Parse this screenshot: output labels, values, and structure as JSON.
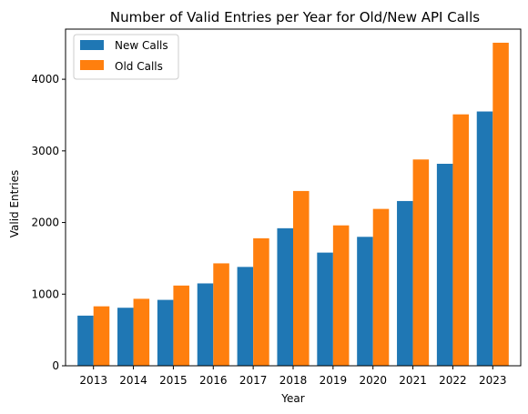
{
  "chart_data": {
    "type": "bar",
    "title": "Number of Valid Entries per Year for Old/New API Calls",
    "xlabel": "Year",
    "ylabel": "Valid Entries",
    "categories": [
      "2013",
      "2014",
      "2015",
      "2016",
      "2017",
      "2018",
      "2019",
      "2020",
      "2021",
      "2022",
      "2023"
    ],
    "series": [
      {
        "name": "New Calls",
        "color": "#1f77b4",
        "values": [
          700,
          810,
          920,
          1150,
          1380,
          1920,
          1580,
          1800,
          2300,
          2820,
          3550
        ]
      },
      {
        "name": "Old Calls",
        "color": "#ff7f0e",
        "values": [
          830,
          935,
          1120,
          1430,
          1780,
          2440,
          1960,
          2190,
          2880,
          3510,
          4510
        ]
      }
    ],
    "ylim": [
      0,
      4700
    ],
    "yticks": [
      0,
      1000,
      2000,
      3000,
      4000
    ],
    "grid": false,
    "legend_position": "top-left"
  }
}
